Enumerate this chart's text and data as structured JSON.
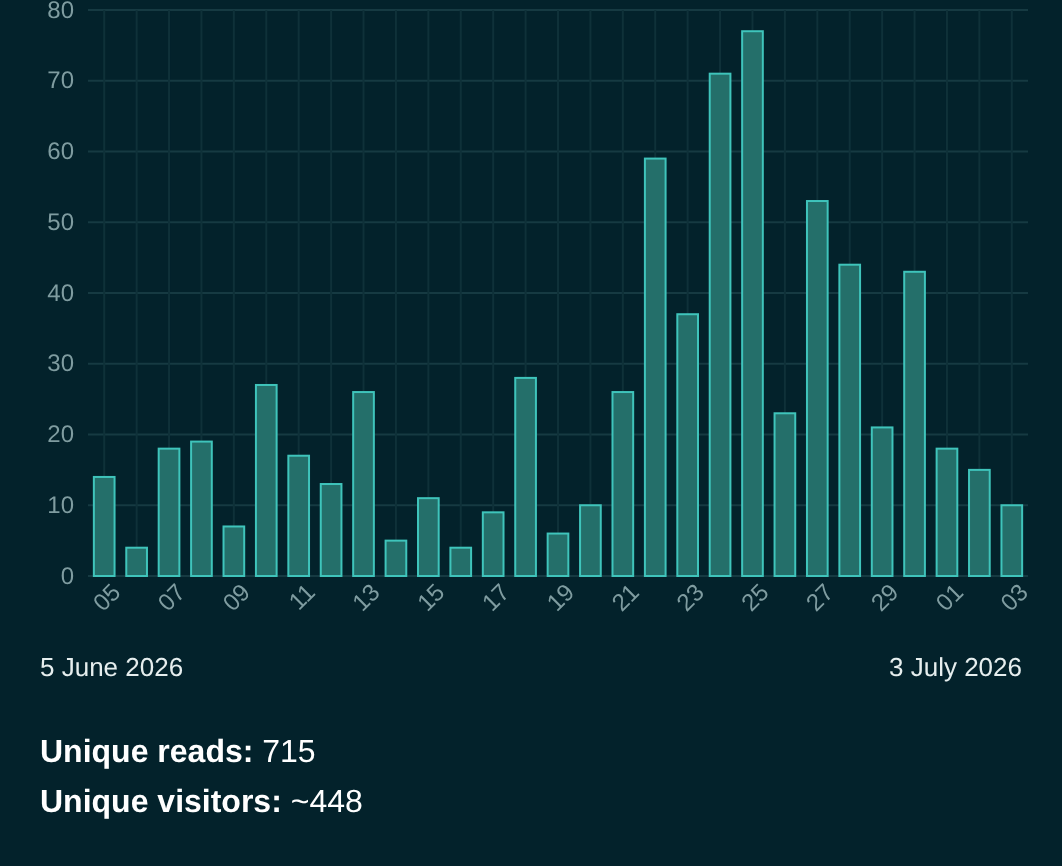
{
  "chart_data": {
    "type": "bar",
    "categories": [
      "05",
      null,
      "07",
      null,
      "09",
      null,
      "11",
      null,
      "13",
      null,
      "15",
      null,
      "17",
      null,
      "19",
      null,
      "21",
      null,
      "23",
      null,
      "25",
      null,
      "27",
      null,
      "29",
      null,
      "01",
      null,
      "03"
    ],
    "values": [
      14,
      4,
      18,
      19,
      7,
      27,
      17,
      13,
      26,
      5,
      11,
      4,
      9,
      28,
      6,
      10,
      26,
      59,
      37,
      71,
      77,
      23,
      53,
      44,
      21,
      43,
      18,
      15,
      10
    ],
    "color": "#3fc4bb",
    "ylim": [
      0,
      80
    ],
    "yticks": [
      0,
      10,
      20,
      30,
      40,
      50,
      60,
      70,
      80
    ],
    "grid": true,
    "annotations": [
      "5 June 2026",
      "3 July 2026",
      "Unique reads: 715",
      "Unique visitors: ~448"
    ]
  }
}
